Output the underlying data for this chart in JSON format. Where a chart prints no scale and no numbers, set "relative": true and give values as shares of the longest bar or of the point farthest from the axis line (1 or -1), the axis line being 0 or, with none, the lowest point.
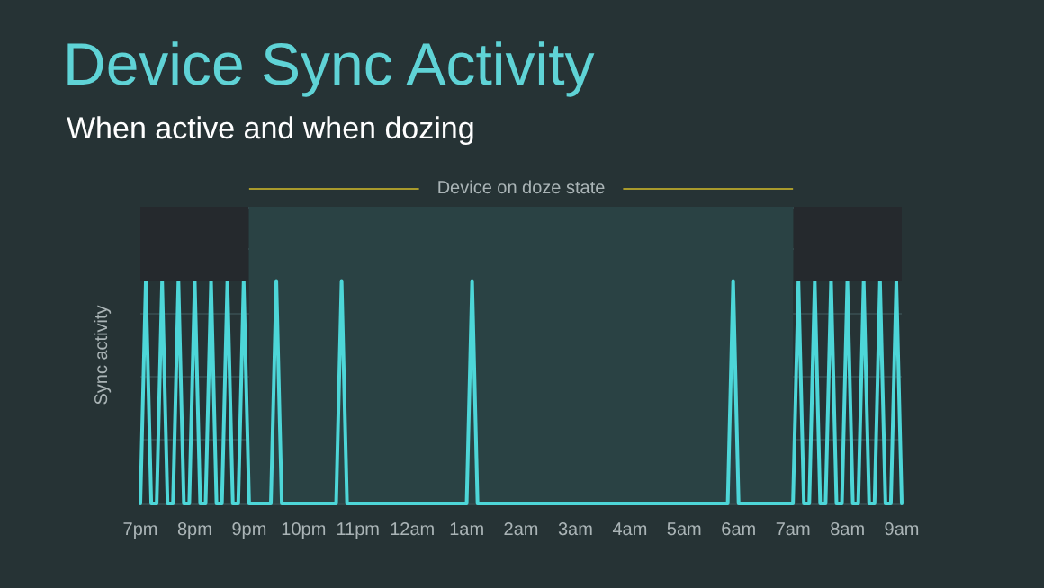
{
  "chart_data": {
    "type": "line",
    "title": "Device Sync Activity",
    "subtitle": "When active and when dozing",
    "ylabel": "Sync activity",
    "relative": true,
    "grid": "y",
    "marker": "none",
    "line_style": "solid",
    "categories": [
      "7pm",
      null,
      null,
      null,
      null,
      null,
      null,
      null,
      null,
      null,
      "8pm",
      null,
      null,
      null,
      null,
      null,
      null,
      null,
      null,
      null,
      "9pm",
      null,
      null,
      null,
      null,
      null,
      null,
      null,
      null,
      null,
      "10pm",
      null,
      null,
      null,
      null,
      null,
      null,
      null,
      null,
      null,
      "11pm",
      null,
      null,
      null,
      null,
      null,
      null,
      null,
      null,
      null,
      "12am",
      null,
      null,
      null,
      null,
      null,
      null,
      null,
      null,
      null,
      "1am",
      null,
      null,
      null,
      null,
      null,
      null,
      null,
      null,
      null,
      "2am",
      null,
      null,
      null,
      null,
      null,
      null,
      null,
      null,
      null,
      "3am",
      null,
      null,
      null,
      null,
      null,
      null,
      null,
      null,
      null,
      "4am",
      null,
      null,
      null,
      null,
      null,
      null,
      null,
      null,
      null,
      "5am",
      null,
      null,
      null,
      null,
      null,
      null,
      null,
      null,
      null,
      "6am",
      null,
      null,
      null,
      null,
      null,
      null,
      null,
      null,
      null,
      "7am",
      null,
      null,
      null,
      null,
      null,
      null,
      null,
      null,
      null,
      "8am",
      null,
      null,
      null,
      null,
      null,
      null,
      null,
      null,
      null,
      "9am"
    ],
    "series": [
      {
        "color": "#4dd6d8",
        "values": [
          0,
          1,
          0,
          0,
          1,
          0,
          0,
          1,
          0,
          0,
          1,
          0,
          0,
          1,
          0,
          0,
          1,
          0,
          0,
          1,
          0,
          0,
          0,
          0,
          0,
          1,
          0,
          0,
          0,
          0,
          0,
          0,
          0,
          0,
          0,
          0,
          0,
          1,
          0,
          0,
          0,
          0,
          0,
          0,
          0,
          0,
          0,
          0,
          0,
          0,
          0,
          0,
          0,
          0,
          0,
          0,
          0,
          0,
          0,
          0,
          0,
          1,
          0,
          0,
          0,
          0,
          0,
          0,
          0,
          0,
          0,
          0,
          0,
          0,
          0,
          0,
          0,
          0,
          0,
          0,
          0,
          0,
          0,
          0,
          0,
          0,
          0,
          0,
          0,
          0,
          0,
          0,
          0,
          0,
          0,
          0,
          0,
          0,
          0,
          0,
          0,
          0,
          0,
          0,
          0,
          0,
          0,
          0,
          0,
          1,
          0,
          0,
          0,
          0,
          0,
          0,
          0,
          0,
          0,
          0,
          0,
          1,
          0,
          0,
          1,
          0,
          0,
          1,
          0,
          0,
          1,
          0,
          0,
          1,
          0,
          0,
          1,
          0,
          0,
          1,
          0
        ]
      }
    ],
    "bands": [
      {
        "axis": "x",
        "from": "9pm",
        "to": "7am",
        "label": "Device on doze state",
        "color": "#2a4244"
      }
    ]
  }
}
